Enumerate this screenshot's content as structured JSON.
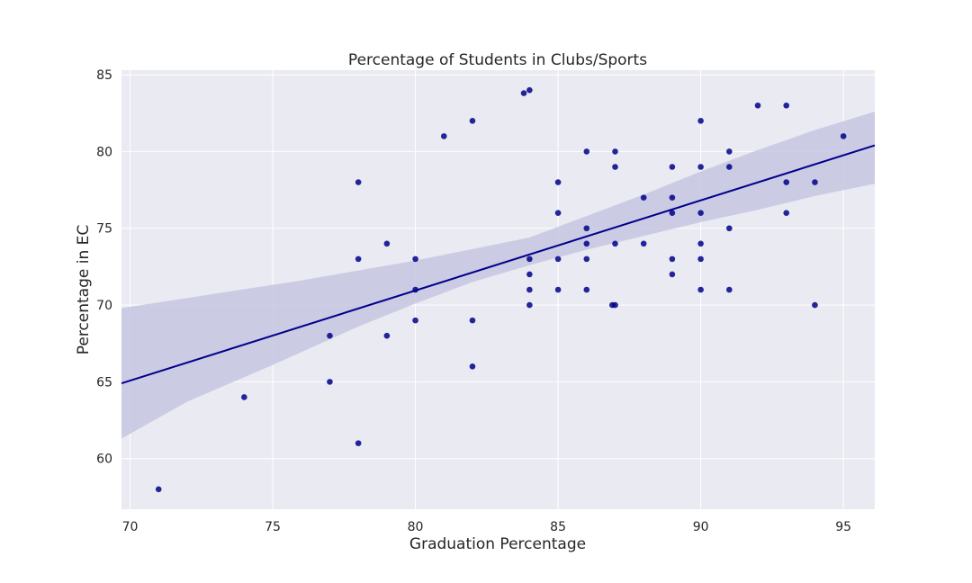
{
  "chart_data": {
    "type": "scatter",
    "title": "Percentage of Students in Clubs/Sports",
    "xlabel": "Graduation Percentage",
    "ylabel": "Percentage in EC",
    "xlim": [
      69.7,
      96.1
    ],
    "ylim": [
      56.7,
      85.3
    ],
    "xticks": [
      70,
      75,
      80,
      85,
      90,
      95
    ],
    "yticks": [
      60,
      65,
      70,
      75,
      80,
      85
    ],
    "grid": true,
    "point_color": "#00008b",
    "background_color": "#eaeaf2",
    "grid_color": "#ffffff",
    "regression": {
      "line_color": "#00008b",
      "band_color": "#c5c5e2",
      "line": [
        [
          69.7,
          64.9
        ],
        [
          96.1,
          80.4
        ]
      ],
      "ci_upper": [
        [
          69.7,
          69.8
        ],
        [
          76,
          71.6
        ],
        [
          80,
          72.9
        ],
        [
          84,
          74.4
        ],
        [
          86,
          75.8
        ],
        [
          88,
          77.2
        ],
        [
          90,
          78.7
        ],
        [
          92,
          80.1
        ],
        [
          94,
          81.4
        ],
        [
          96.1,
          82.6
        ]
      ],
      "ci_lower": [
        [
          69.7,
          61.3
        ],
        [
          72,
          63.7
        ],
        [
          75,
          66.1
        ],
        [
          78,
          68.6
        ],
        [
          80,
          70.1
        ],
        [
          82,
          71.5
        ],
        [
          84,
          72.6
        ],
        [
          86,
          73.6
        ],
        [
          88,
          74.5
        ],
        [
          90,
          75.4
        ],
        [
          92,
          76.2
        ],
        [
          94,
          77.1
        ],
        [
          96.1,
          77.9
        ]
      ]
    },
    "points": [
      [
        71,
        58
      ],
      [
        74,
        64
      ],
      [
        77,
        68
      ],
      [
        77,
        65
      ],
      [
        78,
        78
      ],
      [
        78,
        73
      ],
      [
        78,
        61
      ],
      [
        79,
        74
      ],
      [
        79,
        68
      ],
      [
        80,
        73
      ],
      [
        80,
        71
      ],
      [
        80,
        69
      ],
      [
        81,
        81
      ],
      [
        82,
        82
      ],
      [
        82,
        69
      ],
      [
        82,
        66
      ],
      [
        83.8,
        83.8
      ],
      [
        84,
        84
      ],
      [
        84,
        73
      ],
      [
        84,
        72
      ],
      [
        84,
        71
      ],
      [
        84,
        70
      ],
      [
        85,
        78
      ],
      [
        85,
        76
      ],
      [
        85,
        73
      ],
      [
        85,
        71
      ],
      [
        86,
        80
      ],
      [
        86,
        75
      ],
      [
        86,
        74
      ],
      [
        86,
        73
      ],
      [
        86,
        71
      ],
      [
        86.9,
        70
      ],
      [
        87,
        70
      ],
      [
        87,
        80
      ],
      [
        87,
        79
      ],
      [
        87,
        74
      ],
      [
        88,
        77
      ],
      [
        88,
        74
      ],
      [
        89,
        79
      ],
      [
        89,
        77
      ],
      [
        89,
        76
      ],
      [
        89,
        73
      ],
      [
        89,
        72
      ],
      [
        90,
        82
      ],
      [
        90,
        79
      ],
      [
        90,
        76
      ],
      [
        90,
        74
      ],
      [
        90,
        73
      ],
      [
        90,
        71
      ],
      [
        91,
        80
      ],
      [
        91,
        79
      ],
      [
        91,
        75
      ],
      [
        91,
        71
      ],
      [
        92,
        83
      ],
      [
        93,
        83
      ],
      [
        93,
        78
      ],
      [
        93,
        76
      ],
      [
        94,
        78
      ],
      [
        94,
        70
      ],
      [
        95,
        81
      ]
    ]
  }
}
